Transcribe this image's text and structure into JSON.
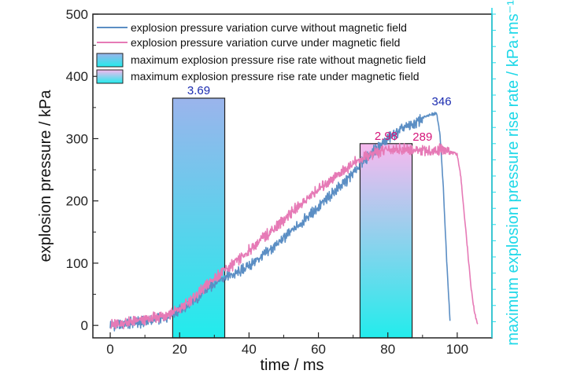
{
  "chart_data": {
    "type": "line",
    "xlabel": "time / ms",
    "ylabel": "explosion pressure / kPa",
    "y2label": "maximum explosion pressure rise rate / kPa·ms⁻¹",
    "xlim": [
      -5,
      110
    ],
    "ylim": [
      -20,
      500
    ],
    "xticks": [
      0,
      20,
      40,
      60,
      80,
      100
    ],
    "yticks": [
      0,
      100,
      200,
      300,
      400,
      500
    ],
    "grid": false,
    "legend_position": "top",
    "series": [
      {
        "name": "explosion pressure variation curve without magnetic field",
        "color": "#5b8ec4",
        "x": [
          0,
          4,
          8,
          12,
          16,
          20,
          22,
          24,
          26,
          28,
          30,
          32,
          34,
          36,
          40,
          44,
          48,
          52,
          56,
          60,
          64,
          68,
          70,
          72,
          76,
          80,
          84,
          88,
          90,
          92,
          94,
          95,
          96,
          97,
          98
        ],
        "y": [
          0,
          3,
          5,
          8,
          14,
          24,
          30,
          38,
          48,
          58,
          68,
          76,
          80,
          82,
          96,
          112,
          130,
          150,
          170,
          190,
          212,
          232,
          244,
          260,
          280,
          300,
          315,
          325,
          333,
          338,
          342,
          310,
          220,
          100,
          0
        ]
      },
      {
        "name": "explosion pressure variation curve under magnetic field",
        "color": "#e67ab6",
        "x": [
          0,
          4,
          8,
          12,
          16,
          20,
          22,
          24,
          26,
          28,
          30,
          32,
          34,
          36,
          40,
          44,
          48,
          52,
          56,
          60,
          64,
          68,
          70,
          72,
          76,
          80,
          84,
          88,
          92,
          96,
          100,
          101,
          102,
          103,
          104,
          105,
          106
        ],
        "y": [
          0,
          4,
          7,
          11,
          17,
          26,
          35,
          45,
          55,
          65,
          76,
          84,
          92,
          100,
          120,
          140,
          160,
          180,
          200,
          218,
          236,
          252,
          260,
          266,
          276,
          283,
          283,
          281,
          280,
          283,
          275,
          240,
          180,
          120,
          60,
          20,
          0
        ]
      }
    ],
    "bars": [
      {
        "name": "maximum explosion pressure rise rate without magnetic field",
        "x_start": 18,
        "x_end": 33,
        "value": 3.69,
        "top_y": 365,
        "color_top": "#9bb4ec",
        "color_bottom": "#22ecec",
        "label": "3.69",
        "label_color": "#1a2bb0"
      },
      {
        "name": "maximum explosion pressure rise rate under magnetic field",
        "x_start": 72,
        "x_end": 87,
        "value": 2.98,
        "top_y": 292,
        "color_top": "#f7b8ee",
        "color_bottom": "#22ecec",
        "label": "2.98",
        "label_color": "#d4157a"
      }
    ],
    "annotations": [
      {
        "text": "346",
        "x": 95.5,
        "y": 346,
        "color": "#1a2bb0"
      },
      {
        "text": "289",
        "x": 90,
        "y": 289,
        "color": "#d4157a"
      }
    ]
  }
}
